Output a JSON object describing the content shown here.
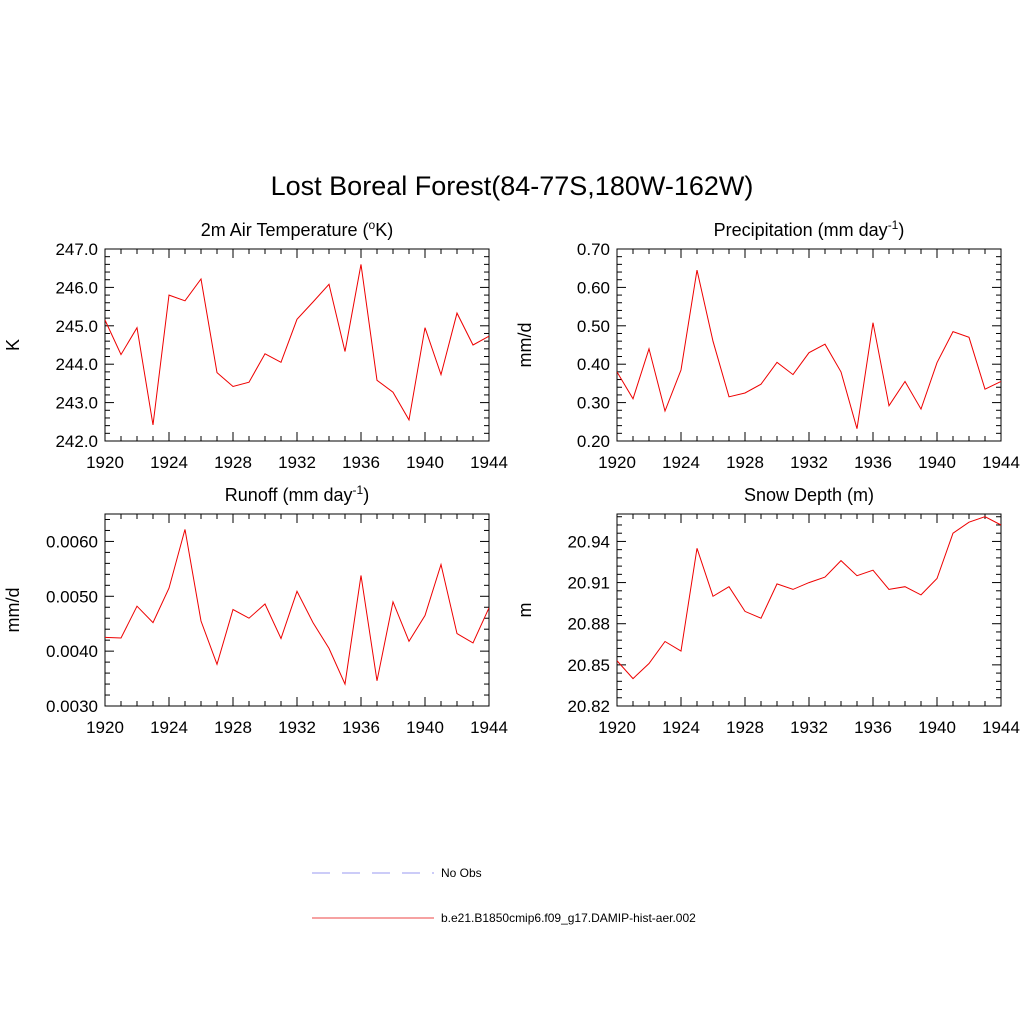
{
  "title": "Lost Boreal Forest(84-77S,180W-162W)",
  "legend": [
    {
      "label": "No Obs",
      "color": "#9a9af0",
      "dash": true
    },
    {
      "label": "b.e21.B1850cmip6.f09_g17.DAMIP-hist-aer.002",
      "color": "#ee4444",
      "dash": false
    }
  ],
  "chart_data": [
    {
      "type": "line",
      "title": "2m Air Temperature (",
      "title_sup": "o",
      "title_after": "K)",
      "ylabel": "K",
      "xlim": [
        1920,
        1944
      ],
      "ylim": [
        242.0,
        247.0
      ],
      "xticks": [
        "1920",
        "1924",
        "1928",
        "1932",
        "1936",
        "1940",
        "1944"
      ],
      "yticks": [
        "242.0",
        "243.0",
        "244.0",
        "245.0",
        "246.0",
        "247.0"
      ],
      "x": [
        1920,
        1921,
        1922,
        1923,
        1924,
        1925,
        1926,
        1927,
        1928,
        1929,
        1930,
        1931,
        1932,
        1933,
        1934,
        1935,
        1936,
        1937,
        1938,
        1939,
        1940,
        1941,
        1942,
        1943,
        1944
      ],
      "series": [
        {
          "color": "#ee0000",
          "values": [
            245.15,
            244.25,
            244.95,
            242.42,
            245.8,
            245.65,
            246.22,
            243.78,
            243.42,
            243.53,
            244.27,
            244.05,
            245.17,
            245.62,
            246.08,
            244.33,
            246.6,
            243.58,
            243.27,
            242.55,
            244.95,
            243.73,
            245.33,
            244.5,
            244.73
          ]
        }
      ]
    },
    {
      "type": "line",
      "title": "Precipitation (mm day",
      "title_sup": "-1",
      "title_after": ")",
      "ylabel": "mm/d",
      "xlim": [
        1920,
        1944
      ],
      "ylim": [
        0.2,
        0.7
      ],
      "xticks": [
        "1920",
        "1924",
        "1928",
        "1932",
        "1936",
        "1940",
        "1944"
      ],
      "yticks": [
        "0.20",
        "0.30",
        "0.40",
        "0.50",
        "0.60",
        "0.70"
      ],
      "x": [
        1920,
        1921,
        1922,
        1923,
        1924,
        1925,
        1926,
        1927,
        1928,
        1929,
        1930,
        1931,
        1932,
        1933,
        1934,
        1935,
        1936,
        1937,
        1938,
        1939,
        1940,
        1941,
        1942,
        1943,
        1944
      ],
      "series": [
        {
          "color": "#ee0000",
          "values": [
            0.38,
            0.31,
            0.44,
            0.278,
            0.385,
            0.645,
            0.46,
            0.315,
            0.325,
            0.348,
            0.405,
            0.373,
            0.43,
            0.452,
            0.38,
            0.232,
            0.508,
            0.292,
            0.355,
            0.283,
            0.404,
            0.485,
            0.47,
            0.335,
            0.355
          ]
        }
      ]
    },
    {
      "type": "line",
      "title": "Runoff (mm day",
      "title_sup": "-1",
      "title_after": ")",
      "ylabel": "mm/d",
      "xlim": [
        1920,
        1944
      ],
      "ylim": [
        0.003,
        0.0065
      ],
      "xticks": [
        "1920",
        "1924",
        "1928",
        "1932",
        "1936",
        "1940",
        "1944"
      ],
      "yticks": [
        "0.0030",
        "0.0040",
        "0.0050",
        "0.0060"
      ],
      "x": [
        1920,
        1921,
        1922,
        1923,
        1924,
        1925,
        1926,
        1927,
        1928,
        1929,
        1930,
        1931,
        1932,
        1933,
        1934,
        1935,
        1936,
        1937,
        1938,
        1939,
        1940,
        1941,
        1942,
        1943,
        1944
      ],
      "series": [
        {
          "color": "#ee0000",
          "values": [
            0.00425,
            0.00424,
            0.00482,
            0.00452,
            0.00515,
            0.00622,
            0.00455,
            0.00376,
            0.00476,
            0.0046,
            0.00486,
            0.00423,
            0.00509,
            0.00452,
            0.00405,
            0.0034,
            0.00538,
            0.00346,
            0.0049,
            0.00418,
            0.00465,
            0.00558,
            0.00432,
            0.00415,
            0.00479
          ]
        }
      ]
    },
    {
      "type": "line",
      "title": "Snow Depth (m)",
      "title_sup": "",
      "title_after": "",
      "ylabel": "m",
      "xlim": [
        1920,
        1944
      ],
      "ylim": [
        20.82,
        20.96
      ],
      "xticks": [
        "1920",
        "1924",
        "1928",
        "1932",
        "1936",
        "1940",
        "1944"
      ],
      "yticks": [
        "20.82",
        "20.85",
        "20.88",
        "20.91",
        "20.94"
      ],
      "x": [
        1920,
        1921,
        1922,
        1923,
        1924,
        1925,
        1926,
        1927,
        1928,
        1929,
        1930,
        1931,
        1932,
        1933,
        1934,
        1935,
        1936,
        1937,
        1938,
        1939,
        1940,
        1941,
        1942,
        1943,
        1944
      ],
      "series": [
        {
          "color": "#ee0000",
          "values": [
            20.853,
            20.84,
            20.851,
            20.867,
            20.86,
            20.935,
            20.9,
            20.907,
            20.889,
            20.884,
            20.909,
            20.905,
            20.91,
            20.914,
            20.926,
            20.915,
            20.919,
            20.905,
            20.907,
            20.901,
            20.913,
            20.946,
            20.954,
            20.958,
            20.952
          ]
        }
      ]
    }
  ]
}
